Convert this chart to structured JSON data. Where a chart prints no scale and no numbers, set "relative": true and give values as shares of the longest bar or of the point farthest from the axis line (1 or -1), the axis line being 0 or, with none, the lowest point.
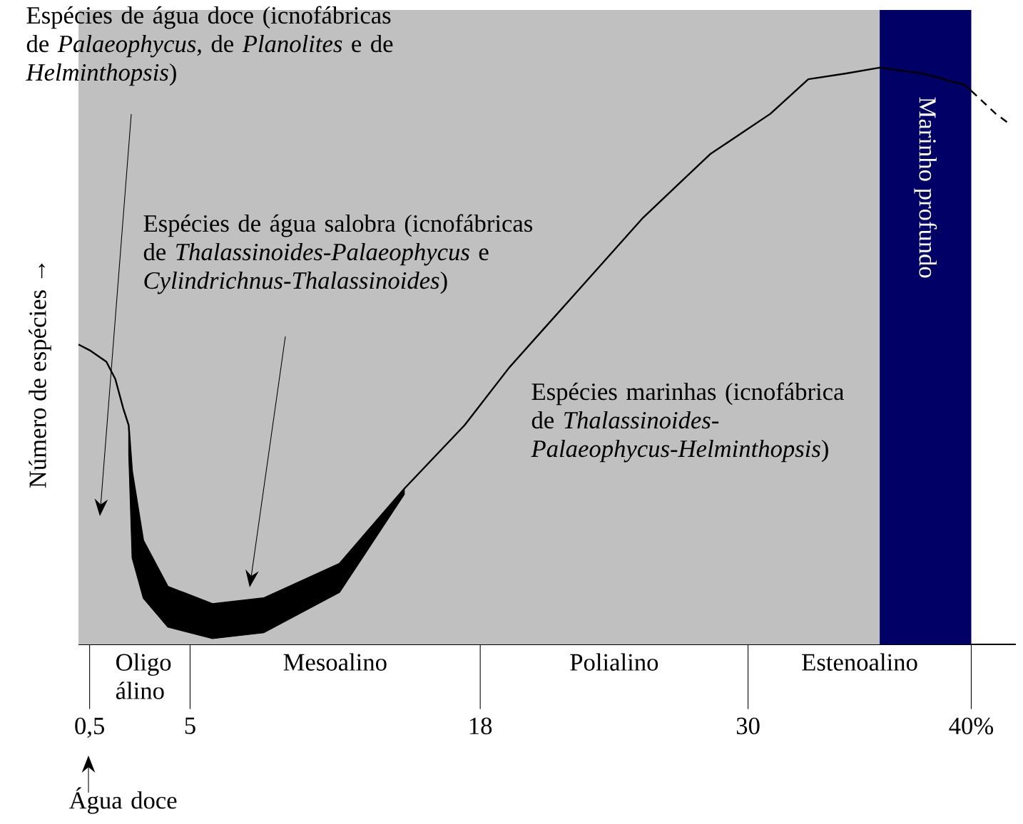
{
  "chart_data": {
    "type": "line",
    "relative": true,
    "ylabel": "Número de espécies →",
    "xlim": [
      0,
      42
    ],
    "xticks": [
      {
        "value": 0.5,
        "label": "0,5"
      },
      5,
      18,
      30,
      {
        "value": 40,
        "label": "40%"
      }
    ],
    "series": [
      {
        "color": "#000000",
        "x": [
          0,
          0.5,
          1.25,
          1.65,
          2.0,
          2.25,
          2.4,
          2.9,
          4.0,
          6.0,
          8.3,
          11.7,
          14.6,
          17.3,
          19.3,
          22.3,
          25.3,
          28.3,
          31.0,
          32.7,
          34.4,
          35.9,
          37.8,
          39.7,
          40
        ],
        "values": [
          0.52,
          0.51,
          0.49,
          0.46,
          0.41,
          0.38,
          0.3,
          0.18,
          0.1,
          0.07,
          0.08,
          0.14,
          0.27,
          0.38,
          0.48,
          0.61,
          0.74,
          0.85,
          0.92,
          0.98,
          0.99,
          1.0,
          0.99,
          0.97,
          0.96
        ],
        "lower": [
          null,
          null,
          null,
          null,
          null,
          0.33,
          0.15,
          0.08,
          0.03,
          0.01,
          0.02,
          0.09,
          0.26,
          null,
          null,
          null,
          null,
          null,
          null,
          null,
          null,
          null,
          null,
          null,
          null
        ],
        "upper": [
          null,
          null,
          null,
          null,
          null,
          0.38,
          0.3,
          0.18,
          0.1,
          0.07,
          0.08,
          0.14,
          0.27,
          null,
          null,
          null,
          null,
          null,
          null,
          null,
          null,
          null,
          null,
          null,
          null
        ]
      },
      {
        "color": "#000000",
        "line_style": "dashed",
        "x": [
          40,
          41.1,
          41.8
        ],
        "values": [
          0.96,
          0.92,
          0.9
        ]
      }
    ],
    "bands": [
      {
        "axis": "x",
        "from": 35.9,
        "to": 40,
        "label": "Marinho profundo",
        "color": "#000066"
      }
    ],
    "annotations": [
      "Espécies de água doce (icnofábricas de *Palaeophycus*, de *Planolites* e de *Helminthopsis*)",
      "Espécies de água salobra (icnofábricas de *Thalassinoides-Palaeophycus* e *Cylindrichnus-Thalassinoides*)",
      "Espécies marinhas (icnofábrica de *Thalassinoides-Palaeophycus-Helminthopsis*)",
      "Água doce",
      "Oligo álino",
      "Mesoalino",
      "Polialino",
      "Estenoalino"
    ]
  }
}
